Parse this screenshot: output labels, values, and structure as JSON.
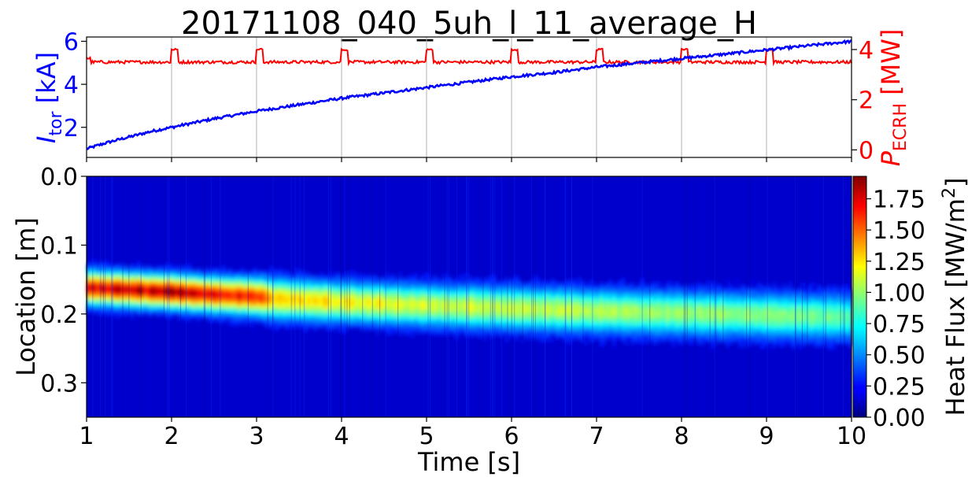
{
  "title": "20171108_040_5uh_l_11_average_H",
  "colors": {
    "itor": "#0000ff",
    "pecrh": "#ff0000",
    "grid": "#b0b0b0",
    "axis": "#000000"
  },
  "chart_data": [
    {
      "type": "line",
      "title": "20171108_040_5uh_l_11_average_H",
      "x_range": [
        1,
        10
      ],
      "x_ticks": [
        1,
        2,
        3,
        4,
        5,
        6,
        7,
        8,
        9,
        10
      ],
      "grid": "vertical lines at integer seconds",
      "y_left": {
        "label_main": "I",
        "label_sub": "tor",
        "label_unit": " [kA]",
        "range": [
          0.6,
          6.2
        ],
        "ticks": [
          2,
          4,
          6
        ]
      },
      "y_right": {
        "label_main": "P",
        "label_sub": "ECRH",
        "label_unit": " [MW]",
        "range": [
          -0.3,
          4.5
        ],
        "ticks": [
          0,
          2,
          4
        ]
      },
      "series": [
        {
          "axis": "left",
          "color": "#0000ff",
          "x": [
            1.0,
            1.25,
            1.5,
            1.75,
            2.0,
            2.5,
            3.0,
            3.5,
            4.0,
            4.5,
            5.0,
            5.5,
            6.0,
            6.5,
            7.0,
            7.5,
            8.0,
            8.5,
            9.0,
            9.5,
            10.0
          ],
          "y": [
            1.0,
            1.3,
            1.55,
            1.8,
            2.0,
            2.4,
            2.75,
            3.05,
            3.35,
            3.6,
            3.85,
            4.1,
            4.35,
            4.55,
            4.8,
            5.0,
            5.2,
            5.4,
            5.6,
            5.8,
            6.0
          ]
        },
        {
          "axis": "right",
          "color": "#ff0000",
          "baseline": 3.5,
          "pulse_value": 4.0,
          "pulse_starts": [
            2.0,
            3.0,
            4.0,
            5.0,
            6.0,
            7.0,
            8.0,
            9.0
          ],
          "pulse_width_s": 0.07
        }
      ]
    },
    {
      "type": "heatmap",
      "xlabel": "Time [s]",
      "ylabel": "Location [m]",
      "x_range": [
        1,
        10
      ],
      "x_ticks": [
        "1",
        "2",
        "3",
        "4",
        "5",
        "6",
        "7",
        "8",
        "9",
        "10"
      ],
      "y_range": [
        0.0,
        0.35
      ],
      "y_ticks": [
        "0.0",
        "0.1",
        "0.2",
        "0.3"
      ],
      "y_tick_values": [
        0.0,
        0.1,
        0.2,
        0.3
      ],
      "colormap": "jet",
      "colorbar": {
        "label_main": "Heat Flux [MW/m",
        "label_sup": "2",
        "label_end": "]",
        "range": [
          0.0,
          1.93
        ],
        "ticks": [
          "0.00",
          "0.25",
          "0.50",
          "0.75",
          "1.00",
          "1.25",
          "1.50",
          "1.75"
        ],
        "tick_values": [
          0.0,
          0.25,
          0.5,
          0.75,
          1.0,
          1.25,
          1.5,
          1.75
        ]
      },
      "band": {
        "time": [
          1.0,
          1.5,
          2.0,
          2.5,
          3.0,
          3.2,
          4.0,
          5.0,
          6.0,
          7.0,
          8.0,
          9.0,
          10.0
        ],
        "center_m": [
          0.162,
          0.165,
          0.168,
          0.172,
          0.175,
          0.178,
          0.183,
          0.188,
          0.192,
          0.196,
          0.199,
          0.202,
          0.205
        ],
        "peak_MWm2": [
          1.55,
          1.6,
          1.7,
          1.55,
          1.45,
          1.15,
          1.05,
          0.95,
          0.92,
          0.88,
          0.82,
          0.78,
          0.72
        ],
        "halfwidth_m": [
          0.022,
          0.022,
          0.022,
          0.023,
          0.024,
          0.026,
          0.026,
          0.027,
          0.028,
          0.028,
          0.029,
          0.029,
          0.03
        ]
      }
    }
  ]
}
